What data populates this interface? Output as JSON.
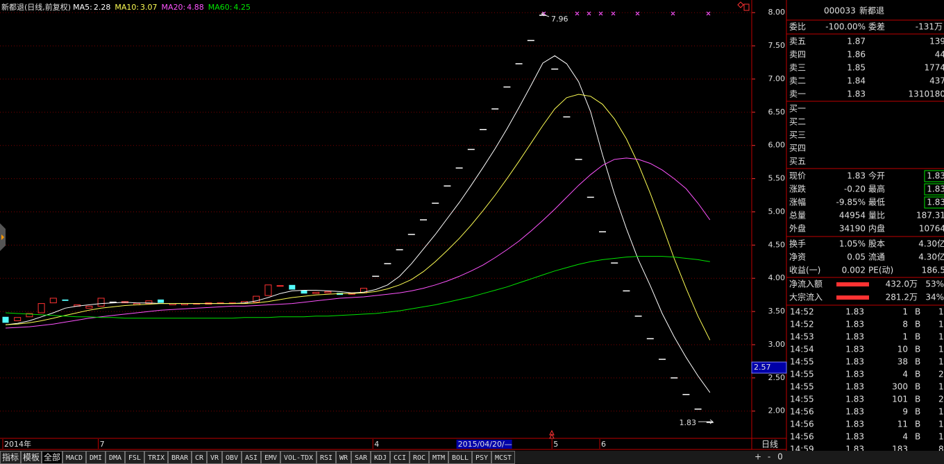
{
  "chart_data": {
    "type": "candlestick",
    "title": "新都退(日线,前复权)",
    "categories": [
      "2014年",
      null,
      null,
      null,
      null,
      null,
      null,
      null,
      "7",
      null,
      null,
      null,
      null,
      null,
      null,
      null,
      null,
      null,
      null,
      null,
      null,
      null,
      null,
      null,
      null,
      null,
      null,
      null,
      null,
      null,
      null,
      "4",
      null,
      null,
      null,
      null,
      null,
      null,
      null,
      null,
      null,
      null,
      null,
      null,
      null,
      null,
      "5",
      null,
      null,
      null,
      "6",
      null,
      null,
      null,
      null,
      null,
      null,
      null,
      null,
      null
    ],
    "open": [
      3.42,
      3.36,
      3.42,
      3.48,
      3.63,
      3.68,
      3.58,
      3.55,
      3.58,
      3.64,
      3.63,
      3.6,
      3.62,
      3.68,
      3.6,
      3.6,
      3.61,
      3.61,
      3.62,
      3.62,
      3.62,
      3.64,
      3.74,
      3.88,
      3.9,
      3.82,
      3.77,
      3.78,
      3.78,
      3.76,
      3.78,
      4.03,
      4.22,
      4.43,
      4.66,
      4.88,
      5.13,
      5.39,
      5.66,
      5.94,
      6.24,
      6.55,
      6.88,
      7.23,
      7.58,
      7.96,
      7.15,
      6.43,
      5.79,
      5.22,
      4.7,
      4.23,
      3.81,
      3.43,
      3.09,
      2.78,
      2.5,
      2.25,
      2.03,
      1.83
    ],
    "close": [
      3.33,
      3.41,
      3.47,
      3.62,
      3.7,
      3.66,
      3.6,
      3.58,
      3.7,
      3.64,
      3.65,
      3.62,
      3.66,
      3.63,
      3.62,
      3.62,
      3.62,
      3.63,
      3.63,
      3.63,
      3.65,
      3.73,
      3.9,
      3.89,
      3.83,
      3.77,
      3.79,
      3.8,
      3.75,
      3.78,
      3.85,
      4.03,
      4.22,
      4.43,
      4.66,
      4.88,
      5.13,
      5.39,
      5.66,
      5.94,
      6.24,
      6.55,
      6.88,
      7.23,
      7.58,
      7.96,
      7.15,
      6.43,
      5.79,
      5.22,
      4.7,
      4.23,
      3.81,
      3.43,
      3.09,
      2.78,
      2.5,
      2.25,
      2.03,
      1.83
    ],
    "series": [
      {
        "name": "MA5:",
        "current": 2.28,
        "color": "#ffffff",
        "values": [
          3.3,
          3.32,
          3.36,
          3.42,
          3.48,
          3.55,
          3.58,
          3.6,
          3.62,
          3.63,
          3.64,
          3.63,
          3.63,
          3.62,
          3.62,
          3.62,
          3.62,
          3.62,
          3.62,
          3.62,
          3.63,
          3.66,
          3.71,
          3.77,
          3.81,
          3.82,
          3.82,
          3.81,
          3.8,
          3.78,
          3.79,
          3.83,
          3.9,
          4.03,
          4.22,
          4.44,
          4.66,
          4.9,
          5.14,
          5.4,
          5.67,
          5.95,
          6.25,
          6.57,
          6.9,
          7.24,
          7.35,
          7.23,
          6.96,
          6.51,
          5.86,
          5.27,
          4.75,
          4.28,
          3.89,
          3.47,
          3.12,
          2.81,
          2.53,
          2.28
        ]
      },
      {
        "name": "MA10:",
        "current": 3.07,
        "color": "#ffff54",
        "values": [
          3.3,
          3.31,
          3.33,
          3.36,
          3.4,
          3.44,
          3.48,
          3.52,
          3.55,
          3.57,
          3.59,
          3.6,
          3.61,
          3.62,
          3.62,
          3.62,
          3.62,
          3.62,
          3.62,
          3.62,
          3.62,
          3.63,
          3.65,
          3.68,
          3.71,
          3.73,
          3.75,
          3.76,
          3.77,
          3.77,
          3.78,
          3.8,
          3.84,
          3.9,
          3.98,
          4.1,
          4.25,
          4.42,
          4.6,
          4.8,
          5.02,
          5.25,
          5.5,
          5.76,
          6.03,
          6.3,
          6.55,
          6.72,
          6.77,
          6.74,
          6.62,
          6.4,
          6.1,
          5.72,
          5.28,
          4.8,
          4.3,
          3.85,
          3.43,
          3.07
        ]
      },
      {
        "name": "MA20:",
        "current": 4.88,
        "color": "#ff54ff",
        "values": [
          3.25,
          3.26,
          3.27,
          3.29,
          3.31,
          3.34,
          3.37,
          3.4,
          3.42,
          3.44,
          3.46,
          3.48,
          3.5,
          3.52,
          3.53,
          3.54,
          3.55,
          3.56,
          3.57,
          3.58,
          3.58,
          3.59,
          3.6,
          3.61,
          3.62,
          3.64,
          3.66,
          3.68,
          3.7,
          3.71,
          3.72,
          3.74,
          3.76,
          3.78,
          3.81,
          3.85,
          3.9,
          3.96,
          4.03,
          4.11,
          4.2,
          4.31,
          4.43,
          4.56,
          4.71,
          4.87,
          5.04,
          5.22,
          5.4,
          5.56,
          5.7,
          5.79,
          5.81,
          5.79,
          5.73,
          5.63,
          5.5,
          5.35,
          5.13,
          4.88
        ]
      },
      {
        "name": "MA60:",
        "current": 4.25,
        "color": "#00e600",
        "values": [
          3.48,
          3.47,
          3.46,
          3.45,
          3.44,
          3.43,
          3.42,
          3.42,
          3.41,
          3.41,
          3.4,
          3.4,
          3.4,
          3.4,
          3.4,
          3.4,
          3.4,
          3.4,
          3.4,
          3.4,
          3.41,
          3.41,
          3.41,
          3.42,
          3.42,
          3.42,
          3.43,
          3.43,
          3.44,
          3.45,
          3.46,
          3.47,
          3.49,
          3.51,
          3.54,
          3.57,
          3.6,
          3.64,
          3.68,
          3.72,
          3.77,
          3.82,
          3.87,
          3.93,
          3.99,
          4.05,
          4.11,
          4.16,
          4.21,
          4.25,
          4.28,
          4.3,
          4.32,
          4.33,
          4.33,
          4.33,
          4.32,
          4.3,
          4.28,
          4.25
        ]
      }
    ],
    "max_label": 7.96,
    "min_label": 1.83,
    "ylim": [
      1.59,
      8.19
    ],
    "yticks": [
      {
        "value": 8,
        "label": "8.00"
      },
      {
        "value": 7.5,
        "label": "7.50"
      },
      {
        "value": 7,
        "label": "7.00"
      },
      {
        "value": 6.5,
        "label": "6.50"
      },
      {
        "value": 6,
        "label": "6.00"
      },
      {
        "value": 5.5,
        "label": "5.50"
      },
      {
        "value": 5,
        "label": "5.00"
      },
      {
        "value": 4.5,
        "label": "4.50"
      },
      {
        "value": 4,
        "label": "4.00"
      },
      {
        "value": 3.5,
        "label": "3.50"
      },
      {
        "value": 3,
        "label": "3.00"
      },
      {
        "value": 2.5,
        "label": "2.50"
      },
      {
        "value": 2,
        "label": "2.00"
      }
    ],
    "grid": true,
    "up_color": "#ff3232",
    "down_color": "#54fcfc",
    "flat_color": "#ffffff",
    "cursor_price": "2.57",
    "cursor_date": "2015/04/20/—",
    "period": "日线"
  },
  "tabs": [
    "指标",
    "模板",
    "全部",
    "MACD",
    "DMI",
    "DMA",
    "FSL",
    "TRIX",
    "BRAR",
    "CR",
    "VR",
    "OBV",
    "ASI",
    "EMV",
    "VOL-TDX",
    "RSI",
    "WR",
    "SAR",
    "KDJ",
    "CCI",
    "ROC",
    "MTM",
    "BOLL",
    "PSY",
    "MCST"
  ],
  "tab_controls": [
    "+",
    "-",
    "0"
  ],
  "quote_panel": {
    "code": "000033",
    "name": "新都退",
    "order_ratio": [
      "委比",
      "-100.00%",
      "委差",
      "-131万"
    ],
    "asks": [
      [
        "卖五",
        "1.87",
        "139"
      ],
      [
        "卖四",
        "1.86",
        "44"
      ],
      [
        "卖三",
        "1.85",
        "1774"
      ],
      [
        "卖二",
        "1.84",
        "437"
      ],
      [
        "卖一",
        "1.83",
        "1310180"
      ]
    ],
    "bids": [
      "买一",
      "买二",
      "买三",
      "买四",
      "买五"
    ],
    "stats": [
      [
        "现价",
        "1.83",
        "今开",
        "1.83"
      ],
      [
        "涨跌",
        "-0.20",
        "最高",
        "1.83"
      ],
      [
        "涨幅",
        "-9.85%",
        "最低",
        "1.83"
      ],
      [
        "总量",
        "44954",
        "量比",
        "187.31"
      ],
      [
        "外盘",
        "34190",
        "内盘",
        "10764"
      ]
    ],
    "fundamentals": [
      [
        "换手",
        "1.05%",
        "股本",
        "4.30亿"
      ],
      [
        "净资",
        "0.05",
        "流通",
        "4.30亿"
      ],
      [
        "收益(一)",
        "0.002",
        "PE(动)",
        "186.5"
      ]
    ],
    "flows": [
      [
        "净流入额",
        "432.0万",
        "53%"
      ],
      [
        "大宗流入",
        "281.2万",
        "34%"
      ]
    ],
    "ticks": [
      [
        "14:52",
        "1.83",
        "1",
        "B",
        "1"
      ],
      [
        "14:52",
        "1.83",
        "8",
        "B",
        "1"
      ],
      [
        "14:53",
        "1.83",
        "1",
        "B",
        "1"
      ],
      [
        "14:54",
        "1.83",
        "10",
        "B",
        "1"
      ],
      [
        "14:55",
        "1.83",
        "38",
        "B",
        "1"
      ],
      [
        "14:55",
        "1.83",
        "4",
        "B",
        "2"
      ],
      [
        "14:55",
        "1.83",
        "300",
        "B",
        "1"
      ],
      [
        "14:55",
        "1.83",
        "101",
        "B",
        "2"
      ],
      [
        "14:56",
        "1.83",
        "9",
        "B",
        "1"
      ],
      [
        "14:56",
        "1.83",
        "11",
        "B",
        "1"
      ],
      [
        "14:56",
        "1.83",
        "4",
        "B",
        "1"
      ],
      [
        "14:59",
        "1.83",
        "183",
        "8"
      ]
    ]
  }
}
